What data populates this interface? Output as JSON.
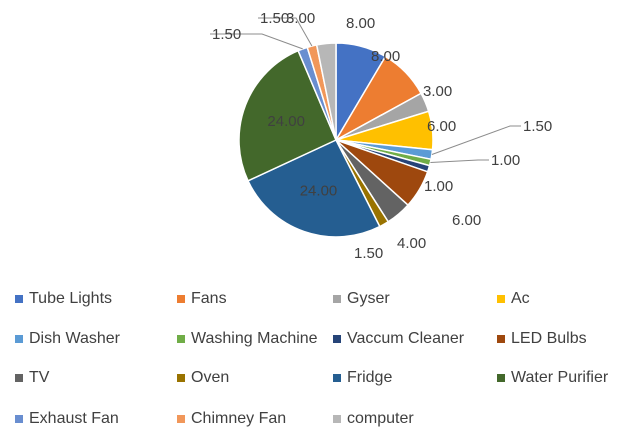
{
  "chart_data": {
    "type": "pie",
    "title": "",
    "legend_position": "bottom",
    "slices": [
      {
        "name": "Tube Lights",
        "value": 8.0,
        "label": "8.00",
        "color": "#4472C4"
      },
      {
        "name": "Fans",
        "value": 8.0,
        "label": "8.00",
        "color": "#ED7D31"
      },
      {
        "name": "Gyser",
        "value": 3.0,
        "label": "3.00",
        "color": "#A5A5A5"
      },
      {
        "name": "Ac",
        "value": 6.0,
        "label": "6.00",
        "color": "#FFC000"
      },
      {
        "name": "Dish Washer",
        "value": 1.5,
        "label": "1.50",
        "color": "#5B9BD5"
      },
      {
        "name": "Washing Machine",
        "value": 1.0,
        "label": "1.00",
        "color": "#70AD47"
      },
      {
        "name": "Vaccum Cleaner",
        "value": 1.0,
        "label": "1.00",
        "color": "#264478"
      },
      {
        "name": "LED Bulbs",
        "value": 6.0,
        "label": "6.00",
        "color": "#9E480E"
      },
      {
        "name": "TV",
        "value": 4.0,
        "label": "4.00",
        "color": "#636363"
      },
      {
        "name": "Oven",
        "value": 1.5,
        "label": "1.50",
        "color": "#997300"
      },
      {
        "name": "Fridge",
        "value": 24.0,
        "label": "24.00",
        "color": "#255E91"
      },
      {
        "name": "Water Purifier",
        "value": 24.0,
        "label": "24.00",
        "color": "#43682B"
      },
      {
        "name": "Exhaust Fan",
        "value": 1.5,
        "label": "1.50",
        "color": "#698ED0"
      },
      {
        "name": "Chimney Fan",
        "value": 1.5,
        "label": "1.50",
        "color": "#F1975A"
      },
      {
        "name": "computer",
        "value": 3.0,
        "label": "3.00",
        "color": "#B7B7B7"
      }
    ]
  }
}
